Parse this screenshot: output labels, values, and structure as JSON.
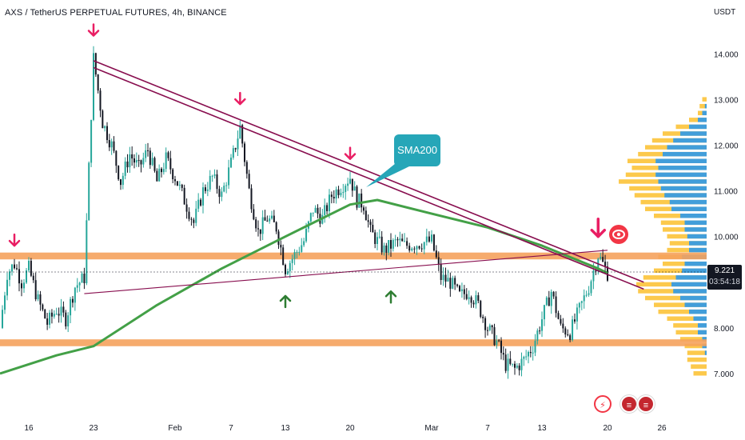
{
  "title": "AXS / TetherUS PERPETUAL FUTURES, 4h, BINANCE",
  "currency": "USDT",
  "last_price": "9.221",
  "countdown": "03:54:18",
  "annotations": {
    "sma_label": "SMA200"
  },
  "icons": {
    "logo": "eye-logo-icon",
    "events": [
      "lightning-icon",
      "us-flag-icon",
      "us-flag-icon"
    ]
  },
  "colors": {
    "up": "#26a69a",
    "down": "#131722",
    "sma": "#43a047",
    "trendline": "#880e4f",
    "zone": "#f5a25d",
    "arrow_red": "#e91e63",
    "arrow_green": "#2e7d32",
    "vp_up": "#fbc02d",
    "vp_down": "#2196f3"
  },
  "chart_data": {
    "type": "candlestick",
    "title": "AXS / TetherUS PERPETUAL FUTURES, 4h, BINANCE",
    "interval": "4h",
    "x_ticks": [
      "16",
      "23",
      "Feb",
      "7",
      "13",
      "20",
      "Mar",
      "7",
      "13",
      "20",
      "26"
    ],
    "y_ticks": [
      "7.000",
      "8.000",
      "9.000",
      "10.000",
      "11.000",
      "12.000",
      "13.000",
      "14.000"
    ],
    "y_tick_values": [
      7,
      8,
      9,
      10,
      11,
      12,
      13,
      14
    ],
    "ylim": [
      6.0,
      15.0
    ],
    "grid": false,
    "price_path": [
      [
        "01-12",
        8.0
      ],
      [
        "01-13",
        9.2
      ],
      [
        "01-14",
        9.4
      ],
      [
        "01-15",
        9.0
      ],
      [
        "01-16",
        9.3
      ],
      [
        "01-17",
        8.6
      ],
      [
        "01-18",
        8.1
      ],
      [
        "01-19",
        8.4
      ],
      [
        "01-20",
        8.2
      ],
      [
        "01-21",
        8.9
      ],
      [
        "01-22",
        9.1
      ],
      [
        "01-23",
        13.9
      ],
      [
        "01-24",
        12.5
      ],
      [
        "01-25",
        12.0
      ],
      [
        "01-26",
        11.2
      ],
      [
        "01-27",
        11.8
      ],
      [
        "01-28",
        11.5
      ],
      [
        "01-29",
        11.9
      ],
      [
        "01-30",
        11.2
      ],
      [
        "01-31",
        11.7
      ],
      [
        "02-01",
        11.3
      ],
      [
        "02-02",
        10.8
      ],
      [
        "02-03",
        10.3
      ],
      [
        "02-04",
        11.0
      ],
      [
        "02-05",
        11.3
      ],
      [
        "02-06",
        10.9
      ],
      [
        "02-07",
        11.6
      ],
      [
        "02-08",
        12.4
      ],
      [
        "02-09",
        11.0
      ],
      [
        "02-10",
        10.1
      ],
      [
        "02-11",
        10.4
      ],
      [
        "02-12",
        10.2
      ],
      [
        "02-13",
        9.3
      ],
      [
        "02-14",
        9.6
      ],
      [
        "02-15",
        9.9
      ],
      [
        "02-16",
        10.6
      ],
      [
        "02-17",
        10.4
      ],
      [
        "02-18",
        10.9
      ],
      [
        "02-19",
        11.1
      ],
      [
        "02-20",
        11.3
      ],
      [
        "02-21",
        10.8
      ],
      [
        "02-22",
        10.7
      ],
      [
        "02-23",
        10.1
      ],
      [
        "02-24",
        9.9
      ],
      [
        "02-25",
        9.7
      ],
      [
        "02-26",
        9.8
      ],
      [
        "02-27",
        9.9
      ],
      [
        "02-28",
        9.8
      ],
      [
        "03-01",
        9.9
      ],
      [
        "03-02",
        9.1
      ],
      [
        "03-03",
        9.0
      ],
      [
        "03-04",
        8.7
      ],
      [
        "03-05",
        8.8
      ],
      [
        "03-06",
        8.5
      ],
      [
        "03-07",
        8.0
      ],
      [
        "03-08",
        7.7
      ],
      [
        "03-09",
        7.2
      ],
      [
        "03-10",
        7.1
      ],
      [
        "03-11",
        7.3
      ],
      [
        "03-12",
        7.6
      ],
      [
        "03-13",
        8.2
      ],
      [
        "03-14",
        8.8
      ],
      [
        "03-15",
        8.0
      ],
      [
        "03-16",
        7.9
      ],
      [
        "03-17",
        8.4
      ],
      [
        "03-18",
        8.9
      ],
      [
        "03-19",
        9.6
      ],
      [
        "03-20",
        9.2
      ]
    ],
    "sma200": [
      [
        "01-12",
        7.0
      ],
      [
        "01-19",
        7.4
      ],
      [
        "01-23",
        7.6
      ],
      [
        "01-30",
        8.5
      ],
      [
        "02-06",
        9.3
      ],
      [
        "02-13",
        10.0
      ],
      [
        "02-20",
        10.7
      ],
      [
        "02-24",
        10.8
      ],
      [
        "03-01",
        10.5
      ],
      [
        "03-07",
        10.2
      ],
      [
        "03-13",
        9.8
      ],
      [
        "03-19",
        9.3
      ],
      [
        "03-20",
        9.2
      ]
    ],
    "trendlines": [
      {
        "from": [
          "01-23",
          13.85
        ],
        "to": [
          "03-24",
          9.0
        ]
      },
      {
        "from": [
          "01-23",
          13.7
        ],
        "to": [
          "03-24",
          8.85
        ]
      },
      {
        "from": [
          "01-22",
          8.75
        ],
        "to": [
          "03-20",
          9.7
        ]
      }
    ],
    "zones": [
      {
        "low": 9.5,
        "high": 9.65
      },
      {
        "low": 7.6,
        "high": 7.75
      }
    ],
    "arrows": [
      {
        "dir": "down",
        "at": [
          "01-14",
          9.8
        ],
        "color": "red"
      },
      {
        "dir": "down",
        "at": [
          "01-23",
          14.4
        ],
        "color": "red"
      },
      {
        "dir": "down",
        "at": [
          "02-08",
          12.9
        ],
        "color": "red"
      },
      {
        "dir": "down",
        "at": [
          "02-20",
          11.7
        ],
        "color": "red"
      },
      {
        "dir": "down",
        "at": [
          "03-19",
          10.0
        ],
        "color": "red"
      },
      {
        "dir": "up",
        "at": [
          "02-13",
          8.7
        ],
        "color": "green"
      },
      {
        "dir": "up",
        "at": [
          "02-26",
          8.8
        ],
        "color": "green"
      }
    ],
    "volume_profile": {
      "rows": [
        [
          7.0,
          0.15,
          0.0
        ],
        [
          7.15,
          0.18,
          0.0
        ],
        [
          7.3,
          0.22,
          0.0
        ],
        [
          7.45,
          0.22,
          0.02
        ],
        [
          7.6,
          0.25,
          0.05
        ],
        [
          7.75,
          0.3,
          0.05
        ],
        [
          7.9,
          0.35,
          0.1
        ],
        [
          8.05,
          0.38,
          0.1
        ],
        [
          8.2,
          0.45,
          0.15
        ],
        [
          8.35,
          0.55,
          0.2
        ],
        [
          8.5,
          0.6,
          0.25
        ],
        [
          8.65,
          0.7,
          0.3
        ],
        [
          8.8,
          0.78,
          0.38
        ],
        [
          8.95,
          0.8,
          0.4
        ],
        [
          9.1,
          0.72,
          0.35
        ],
        [
          9.25,
          0.6,
          0.28
        ],
        [
          9.4,
          0.5,
          0.25
        ],
        [
          9.55,
          0.55,
          0.28
        ],
        [
          9.7,
          0.45,
          0.2
        ],
        [
          9.85,
          0.42,
          0.2
        ],
        [
          10.0,
          0.45,
          0.22
        ],
        [
          10.15,
          0.5,
          0.25
        ],
        [
          10.3,
          0.52,
          0.25
        ],
        [
          10.45,
          0.6,
          0.3
        ],
        [
          10.6,
          0.7,
          0.4
        ],
        [
          10.75,
          0.75,
          0.42
        ],
        [
          10.9,
          0.82,
          0.48
        ],
        [
          11.05,
          0.88,
          0.52
        ],
        [
          11.2,
          1.0,
          0.55
        ],
        [
          11.35,
          0.92,
          0.58
        ],
        [
          11.5,
          0.85,
          0.55
        ],
        [
          11.65,
          0.9,
          0.58
        ],
        [
          11.8,
          0.78,
          0.5
        ],
        [
          11.95,
          0.7,
          0.45
        ],
        [
          12.1,
          0.62,
          0.38
        ],
        [
          12.25,
          0.5,
          0.3
        ],
        [
          12.4,
          0.35,
          0.2
        ],
        [
          12.55,
          0.2,
          0.1
        ],
        [
          12.7,
          0.1,
          0.05
        ],
        [
          12.85,
          0.08,
          0.02
        ],
        [
          13.0,
          0.05,
          0.0
        ]
      ]
    }
  }
}
